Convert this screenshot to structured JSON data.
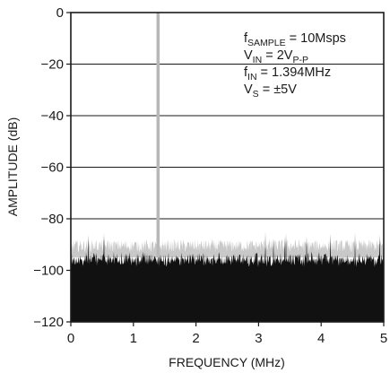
{
  "chart_data": {
    "type": "line",
    "xlabel": "FREQUENCY (MHz)",
    "ylabel": "AMPLITUDE (dB)",
    "xlim": [
      0,
      5
    ],
    "ylim": [
      -120,
      0
    ],
    "x_ticks": [
      "0",
      "1",
      "2",
      "3",
      "4",
      "5"
    ],
    "y_ticks": [
      "0",
      "−20",
      "−40",
      "−60",
      "−80",
      "−100",
      "−120"
    ],
    "grid": "horizontal",
    "fundamental": {
      "x": 1.394,
      "y": 0
    },
    "noise_floor": {
      "top_dB": -95,
      "bottom_dB": -120,
      "peak_dB": -88
    },
    "annotations": [
      {
        "main": "f",
        "sub": "SAMPLE",
        "rest": " = 10Msps"
      },
      {
        "main": "V",
        "sub": "IN",
        "rest": " = 2V",
        "sub2": "P-P"
      },
      {
        "main": "f",
        "sub": "IN",
        "rest": " = 1.394MHz"
      },
      {
        "main": "V",
        "sub": "S",
        "rest": " = ±5V"
      }
    ]
  },
  "colors": {
    "axis": "#1a1a1a",
    "grid": "#1a1a1a",
    "noise": "#111111",
    "fundamental": "#b8b8b8"
  }
}
